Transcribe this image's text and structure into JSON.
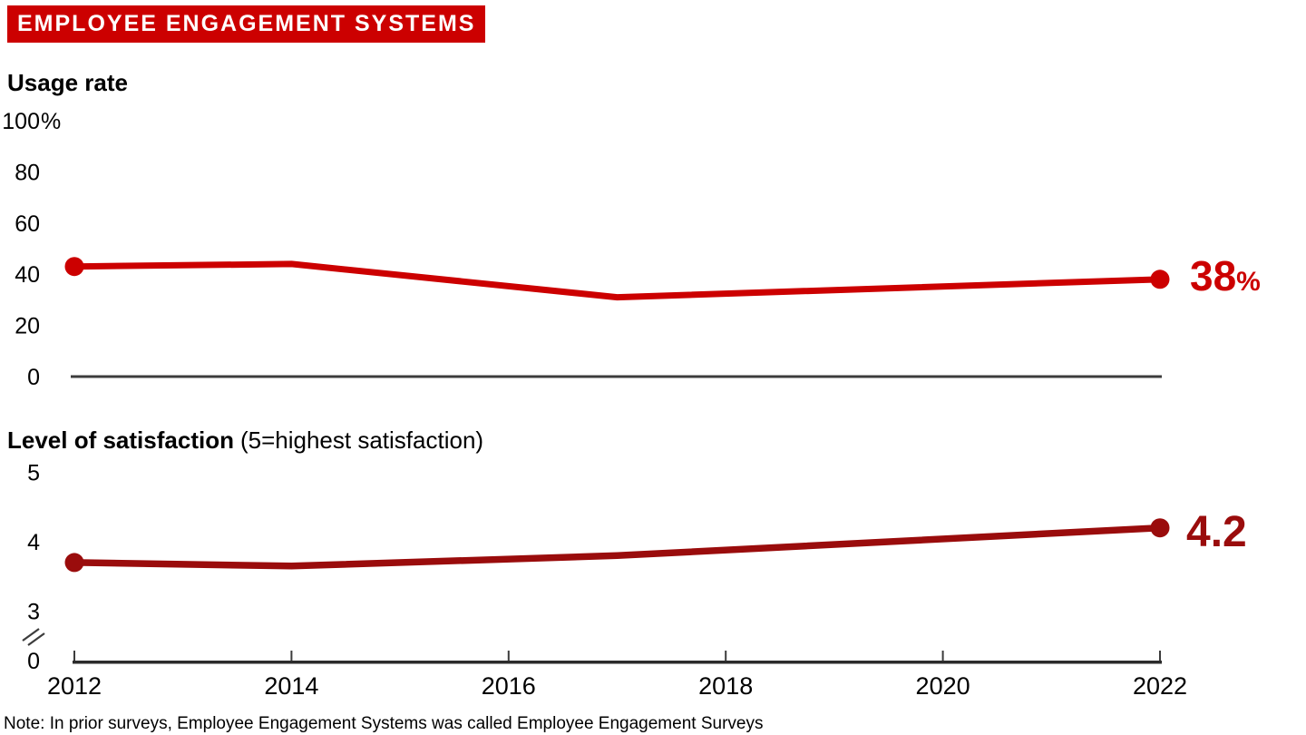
{
  "banner": {
    "title": "EMPLOYEE ENGAGEMENT SYSTEMS",
    "bg": "#CC0000",
    "fg": "#FFFFFF"
  },
  "note": "Note: In prior surveys, Employee Engagement Systems was called Employee Engagement Surveys",
  "colors": {
    "usage_line": "#CC0000",
    "satisfaction_line": "#9A0C0C",
    "axis": "#3C3C3C",
    "axis_dark": "#2B2B2B",
    "text": "#000000"
  },
  "x_axis": {
    "range": [
      2012,
      2022
    ],
    "tick_years": [
      "2012",
      "2014",
      "2016",
      "2018",
      "2020",
      "2022"
    ]
  },
  "chart_data": [
    {
      "type": "line",
      "id": "usage",
      "title": "Usage rate",
      "x": [
        2012,
        2014,
        2017,
        2022
      ],
      "values": [
        43,
        44,
        31,
        38
      ],
      "ylim": [
        0,
        100
      ],
      "yticks": [
        100,
        80,
        60,
        40,
        20,
        0
      ],
      "ytick_top_suffix": "%",
      "line_color": "#CC0000",
      "marker_point_indexes": [
        0,
        3
      ],
      "end_label": {
        "value": "38",
        "suffix": "%"
      },
      "legend": "none",
      "grid": false
    },
    {
      "type": "line",
      "id": "satisfaction",
      "title": "Level of satisfaction",
      "subtitle": "(5=highest satisfaction)",
      "x": [
        2012,
        2014,
        2017,
        2022
      ],
      "values": [
        3.7,
        3.65,
        3.8,
        4.2
      ],
      "ylim_shown": [
        3,
        5
      ],
      "yticks": [
        5,
        4,
        3
      ],
      "zero_tick_label": "0",
      "axis_break": true,
      "line_color": "#9A0C0C",
      "marker_point_indexes": [
        0,
        3
      ],
      "end_label": {
        "value": "4.2",
        "suffix": ""
      },
      "legend": "none",
      "grid": false
    }
  ]
}
